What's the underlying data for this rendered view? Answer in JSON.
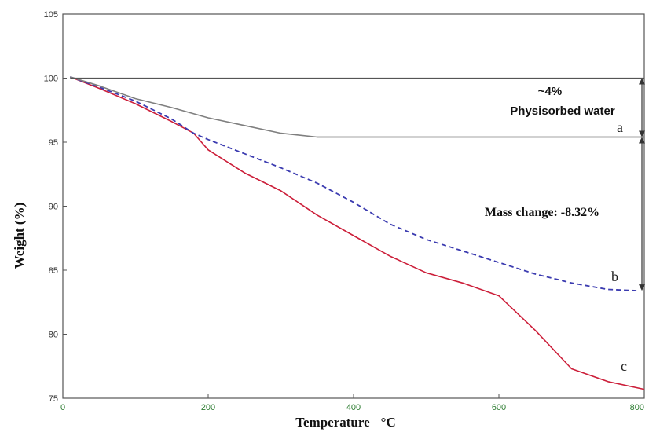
{
  "chart_data": {
    "type": "line",
    "title": "",
    "xlabel": "Temperature",
    "xlabel_unit": "°C",
    "ylabel": "Weight (%)",
    "xlim": [
      0,
      800
    ],
    "ylim": [
      75,
      105
    ],
    "x_ticks": [
      "0",
      "200",
      "400",
      "600",
      "800"
    ],
    "y_ticks": [
      "75",
      "80",
      "85",
      "90",
      "95",
      "100",
      "105"
    ],
    "grid": false,
    "series": [
      {
        "name": "a",
        "color": "#7f7f7f",
        "style": "solid",
        "points": [
          [
            10,
            100.1
          ],
          [
            50,
            99.4
          ],
          [
            100,
            98.4
          ],
          [
            150,
            97.7
          ],
          [
            200,
            96.9
          ],
          [
            250,
            96.3
          ],
          [
            300,
            95.7
          ],
          [
            350,
            95.4
          ],
          [
            400,
            95.4
          ],
          [
            500,
            95.4
          ],
          [
            600,
            95.4
          ],
          [
            700,
            95.4
          ],
          [
            800,
            95.4
          ]
        ]
      },
      {
        "name": "b",
        "color": "#3b3bb0",
        "style": "dashed",
        "points": [
          [
            10,
            100.1
          ],
          [
            50,
            99.3
          ],
          [
            100,
            98.2
          ],
          [
            150,
            96.8
          ],
          [
            180,
            95.7
          ],
          [
            200,
            95.2
          ],
          [
            250,
            94.1
          ],
          [
            300,
            93.0
          ],
          [
            350,
            91.8
          ],
          [
            400,
            90.3
          ],
          [
            450,
            88.6
          ],
          [
            500,
            87.4
          ],
          [
            550,
            86.5
          ],
          [
            600,
            85.6
          ],
          [
            650,
            84.7
          ],
          [
            700,
            84.0
          ],
          [
            750,
            83.5
          ],
          [
            790,
            83.4
          ]
        ]
      },
      {
        "name": "c",
        "color": "#cc1f3a",
        "style": "solid",
        "points": [
          [
            10,
            100.1
          ],
          [
            50,
            99.2
          ],
          [
            100,
            98.0
          ],
          [
            150,
            96.6
          ],
          [
            180,
            95.7
          ],
          [
            200,
            94.4
          ],
          [
            250,
            92.6
          ],
          [
            300,
            91.2
          ],
          [
            350,
            89.3
          ],
          [
            400,
            87.7
          ],
          [
            450,
            86.1
          ],
          [
            500,
            84.8
          ],
          [
            550,
            84.0
          ],
          [
            600,
            83.0
          ],
          [
            650,
            80.3
          ],
          [
            700,
            77.3
          ],
          [
            750,
            76.3
          ],
          [
            800,
            75.7
          ]
        ]
      }
    ],
    "annotations": [
      {
        "text_pct": "~4%",
        "text_desc": "Physisorbed water",
        "span": [
          100,
          95.4
        ]
      },
      {
        "text": "Mass change: -8.32%",
        "span": [
          95.4,
          83.4
        ]
      }
    ]
  }
}
